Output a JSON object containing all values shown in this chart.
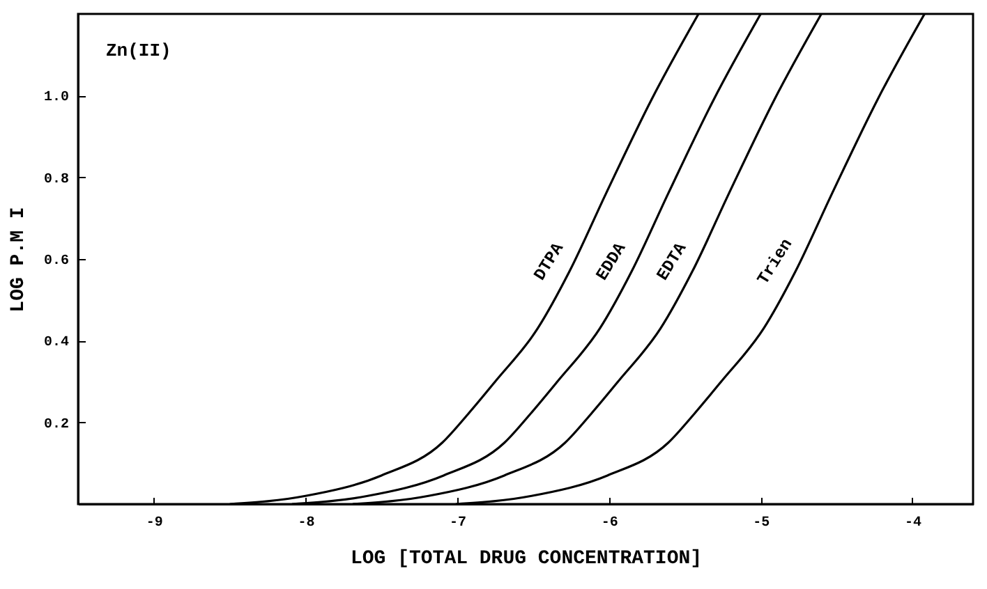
{
  "chart_data": {
    "type": "line",
    "xlabel": "LOG  [TOTAL DRUG CONCENTRATION]",
    "ylabel": "LOG  P.M I",
    "annotations": [
      "Zn(II)"
    ],
    "xlim": [
      -9.5,
      -3.6
    ],
    "ylim": [
      0,
      1.2
    ],
    "xticks": [
      -9,
      -8,
      -7,
      -6,
      -5,
      -4
    ],
    "yticks": [
      0.2,
      0.4,
      0.6,
      0.8,
      {
        "value": 1,
        "label": "1.0"
      }
    ],
    "grid": false,
    "legend": false,
    "marker": "none",
    "line_style": "solid",
    "series": [
      {
        "name": "DTPA",
        "color": "#000000",
        "x": [
          -8.5,
          -8.0,
          -7.5,
          -7.1,
          -6.93,
          -6.75,
          -6.47,
          -6.26,
          -6.02,
          -5.72,
          -5.41
        ],
        "values": [
          0,
          0.02,
          0.07,
          0.15,
          0.22,
          0.3,
          0.43,
          0.57,
          0.76,
          0.99,
          1.2
        ]
      },
      {
        "name": "EDDA",
        "color": "#000000",
        "x": [
          -8.09,
          -7.59,
          -7.09,
          -6.69,
          -6.52,
          -6.34,
          -6.06,
          -5.85,
          -5.61,
          -5.31,
          -5.0
        ],
        "values": [
          0,
          0.02,
          0.07,
          0.15,
          0.22,
          0.3,
          0.43,
          0.57,
          0.76,
          0.99,
          1.2
        ]
      },
      {
        "name": "EDTA",
        "color": "#000000",
        "x": [
          -7.69,
          -7.19,
          -6.69,
          -6.29,
          -6.12,
          -5.94,
          -5.66,
          -5.45,
          -5.21,
          -4.91,
          -4.6
        ],
        "values": [
          0,
          0.02,
          0.07,
          0.15,
          0.22,
          0.3,
          0.43,
          0.57,
          0.76,
          0.99,
          1.2
        ]
      },
      {
        "name": "Trien",
        "color": "#000000",
        "x": [
          -7.01,
          -6.51,
          -6.01,
          -5.61,
          -5.44,
          -5.26,
          -4.98,
          -4.77,
          -4.53,
          -4.23,
          -3.92
        ],
        "values": [
          0,
          0.02,
          0.07,
          0.15,
          0.22,
          0.3,
          0.43,
          0.57,
          0.76,
          0.99,
          1.2
        ]
      }
    ]
  }
}
